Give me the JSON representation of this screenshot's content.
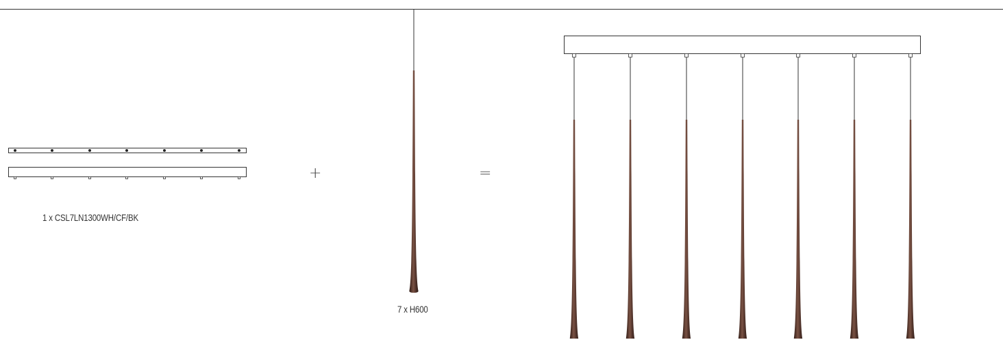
{
  "diagram": {
    "canopy_label": "1 x CSL7LN1300WH/CF/BK",
    "pendant_label": "7 x H600",
    "plus_symbol": "+",
    "equals_symbol": "=",
    "pendant_count": 7,
    "pendant_color": "#5a3a2e",
    "line_color": "#333333"
  }
}
